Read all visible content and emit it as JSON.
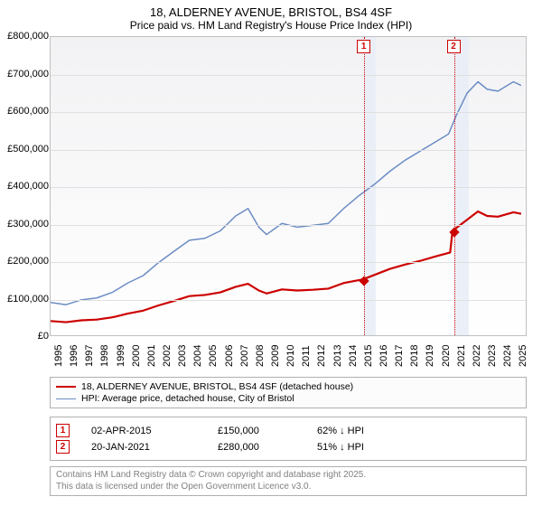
{
  "title": {
    "line1": "18, ALDERNEY AVENUE, BRISTOL, BS4 4SF",
    "line2": "Price paid vs. HM Land Registry's House Price Index (HPI)"
  },
  "chart": {
    "type": "line",
    "background_gradient_top": "#f2f2f4",
    "background_gradient_bottom": "#ffffff",
    "grid_color": "#e0e0e0",
    "border_color": "#c0c0c0",
    "xaxis": {
      "min": 1995,
      "max": 2025.8,
      "ticks": [
        1995,
        1996,
        1997,
        1998,
        1999,
        2000,
        2001,
        2002,
        2003,
        2004,
        2005,
        2006,
        2007,
        2008,
        2009,
        2010,
        2011,
        2012,
        2013,
        2014,
        2015,
        2016,
        2017,
        2018,
        2019,
        2020,
        2021,
        2022,
        2023,
        2024,
        2025
      ],
      "label_fontsize": 11,
      "label_rotation": -90
    },
    "yaxis": {
      "min": 0,
      "max": 800000,
      "ticks": [
        0,
        100000,
        200000,
        300000,
        400000,
        500000,
        600000,
        700000,
        800000
      ],
      "tick_labels": [
        "£0",
        "£100,000",
        "£200,000",
        "£300,000",
        "£400,000",
        "£500,000",
        "£600,000",
        "£700,000",
        "£800,000"
      ],
      "label_fontsize": 11
    },
    "shaded_bands": [
      {
        "x0_year": 2015.25,
        "x1_year": 2016.0,
        "color": "#e7edf7"
      },
      {
        "x0_year": 2021.05,
        "x1_year": 2022.0,
        "color": "#e7edf7"
      }
    ],
    "markers": [
      {
        "id": "1",
        "x_year": 2015.25,
        "y_value": 150000,
        "label_top": true
      },
      {
        "id": "2",
        "x_year": 2021.05,
        "y_value": 280000,
        "label_top": true
      }
    ],
    "marker_line_color": "#cc0000",
    "marker_box_border": "#cc0000",
    "series": [
      {
        "name": "HPI: Average price, detached house, City of Bristol",
        "color": "#6b8cc4",
        "line_width": 1.5,
        "points": [
          [
            1995,
            88000
          ],
          [
            1996,
            82000
          ],
          [
            1997,
            95000
          ],
          [
            1998,
            100000
          ],
          [
            1999,
            115000
          ],
          [
            2000,
            140000
          ],
          [
            2001,
            160000
          ],
          [
            2002,
            195000
          ],
          [
            2003,
            225000
          ],
          [
            2004,
            255000
          ],
          [
            2005,
            260000
          ],
          [
            2006,
            280000
          ],
          [
            2007,
            320000
          ],
          [
            2007.8,
            340000
          ],
          [
            2008.5,
            290000
          ],
          [
            2009,
            270000
          ],
          [
            2010,
            300000
          ],
          [
            2011,
            290000
          ],
          [
            2012,
            295000
          ],
          [
            2013,
            300000
          ],
          [
            2014,
            340000
          ],
          [
            2015,
            375000
          ],
          [
            2016,
            405000
          ],
          [
            2017,
            440000
          ],
          [
            2018,
            470000
          ],
          [
            2019,
            495000
          ],
          [
            2020,
            520000
          ],
          [
            2020.8,
            540000
          ],
          [
            2021.3,
            590000
          ],
          [
            2022,
            650000
          ],
          [
            2022.7,
            680000
          ],
          [
            2023.3,
            660000
          ],
          [
            2024,
            655000
          ],
          [
            2025,
            680000
          ],
          [
            2025.5,
            670000
          ]
        ]
      },
      {
        "name": "18, ALDERNEY AVENUE, BRISTOL, BS4 4SF (detached house)",
        "color": "#cc0000",
        "line_width": 2.2,
        "points": [
          [
            1995,
            38000
          ],
          [
            1996,
            35000
          ],
          [
            1997,
            40000
          ],
          [
            1998,
            42000
          ],
          [
            1999,
            48000
          ],
          [
            2000,
            58000
          ],
          [
            2001,
            66000
          ],
          [
            2002,
            80000
          ],
          [
            2003,
            92000
          ],
          [
            2004,
            105000
          ],
          [
            2005,
            108000
          ],
          [
            2006,
            115000
          ],
          [
            2007,
            130000
          ],
          [
            2007.8,
            138000
          ],
          [
            2008.5,
            120000
          ],
          [
            2009,
            112000
          ],
          [
            2010,
            123000
          ],
          [
            2011,
            120000
          ],
          [
            2012,
            122000
          ],
          [
            2013,
            125000
          ],
          [
            2014,
            140000
          ],
          [
            2015.25,
            150000
          ],
          [
            2016,
            162000
          ],
          [
            2017,
            178000
          ],
          [
            2018,
            190000
          ],
          [
            2019,
            200000
          ],
          [
            2020,
            212000
          ],
          [
            2020.9,
            222000
          ],
          [
            2021.05,
            280000
          ],
          [
            2022,
            310000
          ],
          [
            2022.7,
            332000
          ],
          [
            2023.3,
            320000
          ],
          [
            2024,
            318000
          ],
          [
            2025,
            330000
          ],
          [
            2025.5,
            326000
          ]
        ]
      }
    ]
  },
  "legend": {
    "border_color": "#b0b0b0",
    "items": [
      {
        "label": "18, ALDERNEY AVENUE, BRISTOL, BS4 4SF (detached house)",
        "color": "#cc0000",
        "line_width": 2.2
      },
      {
        "label": "HPI: Average price, detached house, City of Bristol",
        "color": "#6b8cc4",
        "line_width": 1.5
      }
    ]
  },
  "sales_table": {
    "rows": [
      {
        "num": "1",
        "date": "02-APR-2015",
        "price": "£150,000",
        "pct": "62% ↓ HPI"
      },
      {
        "num": "2",
        "date": "20-JAN-2021",
        "price": "£280,000",
        "pct": "51% ↓ HPI"
      }
    ]
  },
  "credits": {
    "line1": "Contains HM Land Registry data © Crown copyright and database right 2025.",
    "line2": "This data is licensed under the Open Government Licence v3.0."
  }
}
